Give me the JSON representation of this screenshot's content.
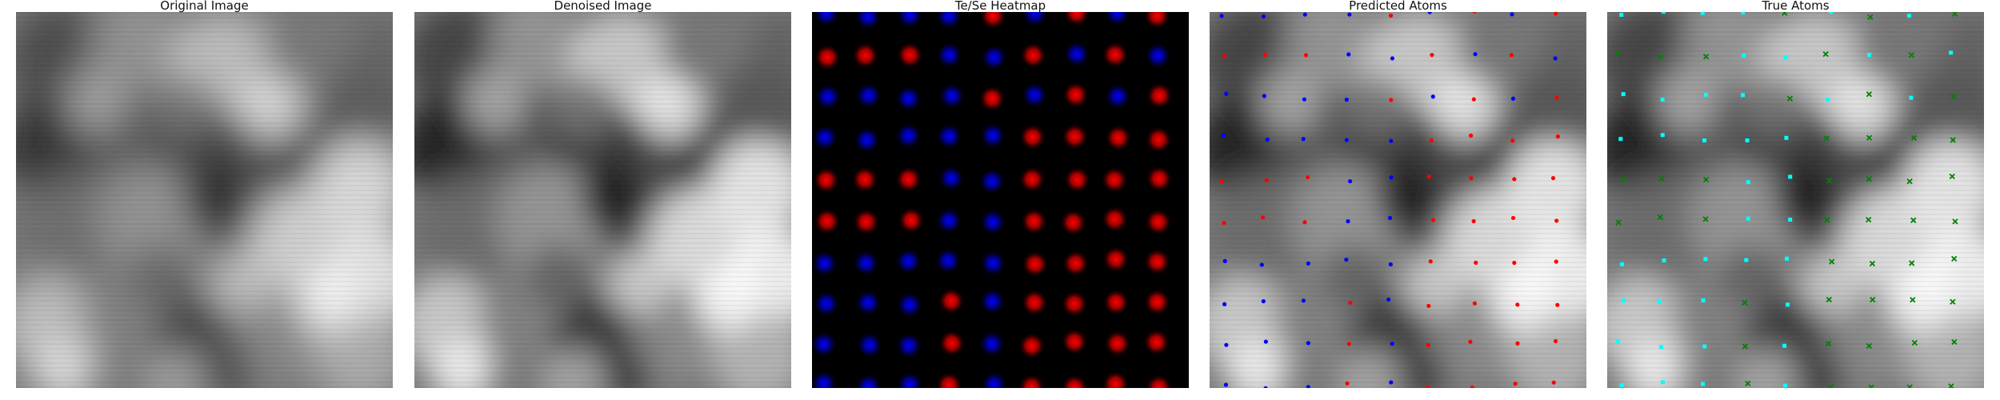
{
  "panels": [
    {
      "id": "original",
      "title": "Original Image",
      "kind": "micrograph-raw"
    },
    {
      "id": "denoised",
      "title": "Denoised Image",
      "kind": "micrograph-denoised"
    },
    {
      "id": "heatmap",
      "title": "Te/Se Heatmap",
      "kind": "heatmap"
    },
    {
      "id": "predicted",
      "title": "Predicted Atoms",
      "kind": "atoms-dots"
    },
    {
      "id": "true",
      "title": "True Atoms",
      "kind": "atoms-cross-square"
    }
  ],
  "colors": {
    "te": "#ff0000",
    "se": "#0000ff",
    "true_a": "#00ffff",
    "true_b": "#008000",
    "background_dark": "#000000"
  }
}
